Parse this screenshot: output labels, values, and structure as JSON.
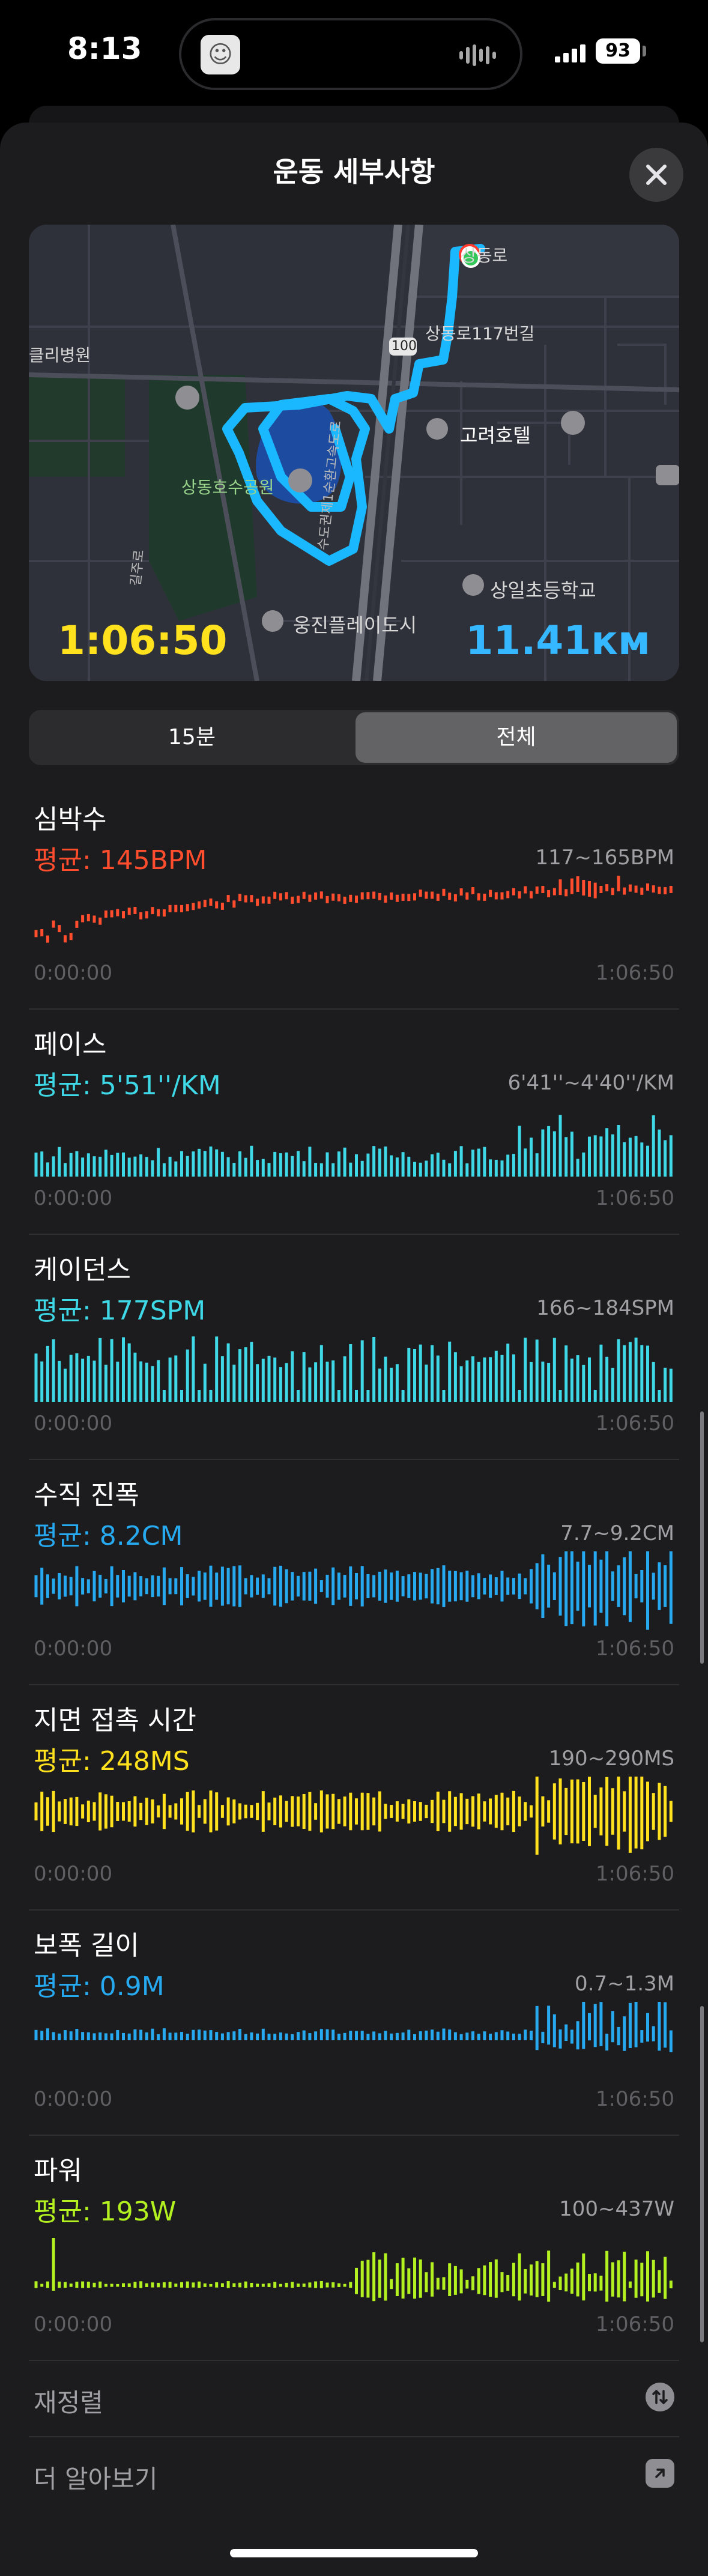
{
  "status_bar": {
    "time": "8:13",
    "battery": "93"
  },
  "sheet": {
    "title": "운동 세부사항"
  },
  "map": {
    "duration": "1:06:50",
    "distance": "11.41км",
    "labels": {
      "hospital": "클리병원",
      "park": "상동호수공원",
      "street": "상동로117번길",
      "hotel": "고려호텔",
      "school": "상일초등학교",
      "plaza": "웅진플레이도시",
      "road_top": "상동로",
      "highway": "100",
      "expressway": "수도권제1순환고속도로",
      "road_left": "길주로"
    }
  },
  "segmented": {
    "options": [
      "15분",
      "전체"
    ],
    "selected": "전체"
  },
  "metrics": [
    {
      "title": "심박수",
      "avg": "평균: 145BPM",
      "range": "117~165BPM",
      "start": "0:00:00",
      "end": "1:06:50",
      "color": "#ff4d2e",
      "style": "line"
    },
    {
      "title": "페이스",
      "avg": "평균: 5'51''/KM",
      "range": "6'41''~4'40''/KM",
      "start": "0:00:00",
      "end": "1:06:50",
      "color": "#3ed8e6",
      "style": "bottom"
    },
    {
      "title": "케이던스",
      "avg": "평균: 177SPM",
      "range": "166~184SPM",
      "start": "0:00:00",
      "end": "1:06:50",
      "color": "#3ed8e6",
      "style": "bottom"
    },
    {
      "title": "수직 진폭",
      "avg": "평균: 8.2CM",
      "range": "7.7~9.2CM",
      "start": "0:00:00",
      "end": "1:06:50",
      "color": "#27a9f0",
      "style": "center"
    },
    {
      "title": "지면 접촉 시간",
      "avg": "평균: 248MS",
      "range": "190~290MS",
      "start": "0:00:00",
      "end": "1:06:50",
      "color": "#ffe11e",
      "style": "center"
    },
    {
      "title": "보폭 길이",
      "avg": "평균: 0.9M",
      "range": "0.7~1.3M",
      "start": "0:00:00",
      "end": "1:06:50",
      "color": "#27a9f0",
      "style": "center"
    },
    {
      "title": "파워",
      "avg": "평균: 193W",
      "range": "100~437W",
      "start": "0:00:00",
      "end": "1:06:50",
      "color": "#b3f120",
      "style": "baseline"
    }
  ],
  "rows": [
    {
      "label": "재정렬",
      "icon": "reorder-icon"
    },
    {
      "label": "더 알아보기",
      "icon": "external-link-icon"
    }
  ]
}
